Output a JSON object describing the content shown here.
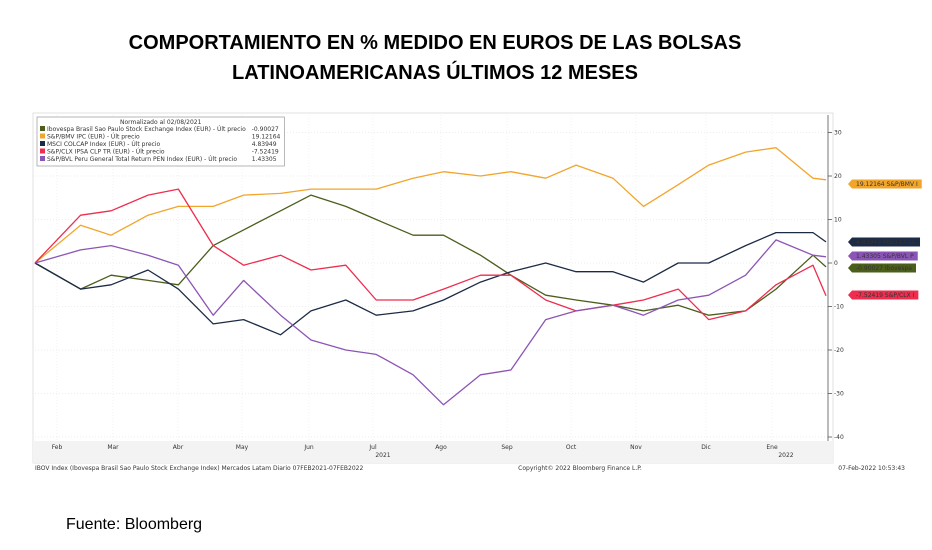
{
  "title_line1": "COMPORTAMIENTO EN % MEDIDO EN EUROS DE LAS BOLSAS",
  "title_line2": "LATINOAMERICANAS ÚLTIMOS 12 MESES",
  "source": "Fuente: Bloomberg",
  "chart_data": {
    "type": "line",
    "legend_title": "Normalizado al 02/08/2021",
    "legend_placement": "top-left",
    "ylim": [
      -40,
      32
    ],
    "yticks": [
      30,
      20,
      10,
      0,
      -10,
      -20,
      -30,
      -40
    ],
    "y_axis_side": "right",
    "grid": true,
    "x_tick_labels": [
      "Feb",
      "Mar",
      "Abr",
      "May",
      "Jun",
      "Jul",
      "Ago",
      "Sep",
      "Oct",
      "Nov",
      "Dic",
      "Ene"
    ],
    "x_year_labels": [
      "2021",
      "2022"
    ],
    "footer_left": "IBOV Index (Ibovespa Brasil Sao Paulo Stock Exchange Index) Mercados Latam  Diario 07FEB2021-07FEB2022",
    "footer_center": "Copyright© 2022 Bloomberg Finance L.P.",
    "footer_right": "07-Feb-2022 10:53:43",
    "x": [
      "2021-02-08",
      "2021-03-01",
      "2021-03-15",
      "2021-04-01",
      "2021-04-15",
      "2021-05-01",
      "2021-05-15",
      "2021-06-01",
      "2021-06-15",
      "2021-07-01",
      "2021-07-15",
      "2021-08-01",
      "2021-08-15",
      "2021-09-01",
      "2021-09-15",
      "2021-10-01",
      "2021-10-15",
      "2021-11-01",
      "2021-11-15",
      "2021-12-01",
      "2021-12-15",
      "2022-01-01",
      "2022-01-15",
      "2022-02-01",
      "2022-02-07"
    ],
    "series": [
      {
        "name": "Ibovespa Brasil Sao Paulo Stock Exchange Index (EUR) - Últ precio",
        "last": "-0.90027",
        "tag": "-0.90027 Ibovespa",
        "color": "#4b5e1c",
        "values": [
          0,
          -6,
          -2.8,
          -4,
          -5,
          4,
          7.6,
          12,
          15.6,
          13,
          10,
          6.4,
          6.4,
          1.8,
          -2.8,
          -7.4,
          -8.5,
          -9.7,
          -11,
          -9.7,
          -12,
          -11,
          -6,
          1.8,
          -0.9
        ]
      },
      {
        "name": "S&P/BMV IPC (EUR) - Últ precio",
        "last": "19.12164",
        "tag": "19.12164 S&P/BMV I",
        "color": "#f2a52b",
        "values": [
          0,
          8.7,
          6.4,
          11,
          13,
          13,
          15.6,
          16,
          17,
          17,
          17,
          19.5,
          21,
          20,
          21,
          19.5,
          22.5,
          19.5,
          13,
          18,
          22.5,
          25.5,
          26.5,
          19.5,
          19.12
        ]
      },
      {
        "name": "MSCI COLCAP Index (EUR) - Últ precio",
        "last": "4.83949",
        "tag": "4.83949  MSCI COLC",
        "color": "#1c2b45",
        "values": [
          0,
          -6,
          -5,
          -1.6,
          -6,
          -14,
          -13,
          -16.5,
          -11,
          -8.5,
          -12,
          -11,
          -8.5,
          -4.4,
          -2,
          0,
          -2,
          -2,
          -4.4,
          0,
          0,
          4,
          7,
          7,
          4.84
        ]
      },
      {
        "name": "S&P/CLX IPSA CLP TR (EUR) - Últ precio",
        "last": "-7.52419",
        "tag": "-7.52419 S&P/CLX I",
        "color": "#ee2d4f",
        "values": [
          0,
          11,
          12,
          15.6,
          17,
          4,
          -0.5,
          1.8,
          -1.6,
          -0.5,
          -8.5,
          -8.5,
          -6,
          -2.8,
          -2.8,
          -8.5,
          -11,
          -9.7,
          -8.5,
          -6,
          -13,
          -11,
          -5,
          -0.5,
          -7.52
        ]
      },
      {
        "name": "S&P/BVL Peru General Total Return PEN Index (EUR) - Últ precio",
        "last": "1.43305",
        "tag": "1.43305  S&P/BVL P",
        "color": "#8b55b5",
        "values": [
          0,
          3,
          4,
          1.8,
          -0.5,
          -12,
          -4,
          -12,
          -17.7,
          -20,
          -21,
          -25.7,
          -32.6,
          -25.7,
          -24.6,
          -13,
          -11,
          -9.7,
          -12,
          -8.5,
          -7.4,
          -2.8,
          5.3,
          1.8,
          1.43
        ]
      }
    ]
  }
}
